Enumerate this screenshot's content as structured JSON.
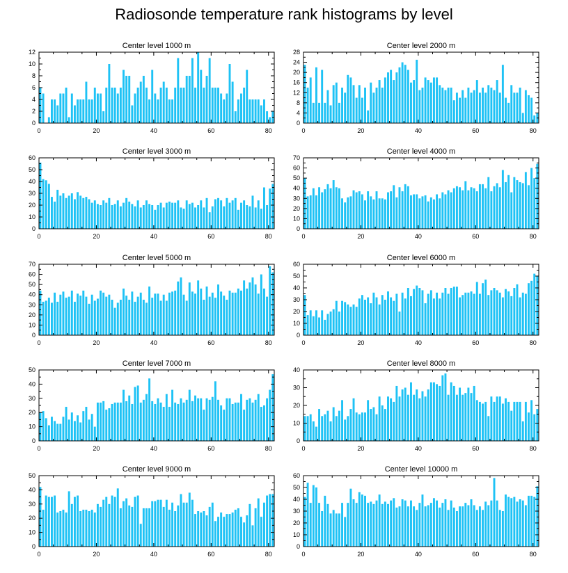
{
  "figure_title": "Radiosonde temperature rank histograms by level",
  "chart_data": [
    {
      "type": "bar",
      "title": "Center level 1000 m",
      "xlabel": "",
      "ylabel": "",
      "xlim": [
        0,
        82
      ],
      "ylim": [
        0,
        12
      ],
      "xticks": [
        0,
        20,
        40,
        60,
        80
      ],
      "yticks": [
        0,
        2,
        4,
        6,
        8,
        10,
        12
      ],
      "values": [
        6,
        5,
        0,
        1,
        4,
        4,
        3,
        5,
        5,
        6,
        1,
        5,
        3,
        4,
        4,
        4,
        7,
        4,
        4,
        6,
        5,
        5,
        2,
        6,
        10,
        6,
        6,
        5,
        6,
        9,
        8,
        8,
        3,
        5,
        6,
        7,
        8,
        6,
        4,
        9,
        5,
        4,
        6,
        7,
        6,
        4,
        4,
        6,
        11,
        6,
        6,
        8,
        8,
        11,
        6,
        12,
        9,
        6,
        8,
        11,
        6,
        6,
        6,
        5,
        4,
        5,
        10,
        7,
        2,
        4,
        5,
        6,
        9,
        4,
        4,
        4,
        4,
        3,
        4,
        2,
        1,
        2
      ]
    },
    {
      "type": "bar",
      "title": "Center level 2000 m",
      "xlabel": "",
      "ylabel": "",
      "xlim": [
        0,
        82
      ],
      "ylim": [
        0,
        28
      ],
      "xticks": [
        0,
        20,
        40,
        60,
        80
      ],
      "yticks": [
        0,
        4,
        8,
        12,
        16,
        20,
        24,
        28
      ],
      "values": [
        23,
        14,
        18,
        8,
        22,
        8,
        21,
        8,
        13,
        7,
        15,
        16,
        8,
        14,
        12,
        19,
        18,
        15,
        10,
        15,
        10,
        14,
        5,
        16,
        12,
        14,
        17,
        14,
        18,
        20,
        21,
        17,
        20,
        22,
        24,
        23,
        21,
        16,
        17,
        25,
        13,
        14,
        18,
        17,
        16,
        18,
        18,
        15,
        14,
        13,
        14,
        14,
        9,
        12,
        10,
        13,
        10,
        14,
        12,
        13,
        17,
        12,
        14,
        12,
        15,
        14,
        13,
        17,
        12,
        23,
        10,
        8,
        15,
        12,
        12,
        14,
        4,
        13,
        11,
        10,
        3,
        4
      ]
    },
    {
      "type": "bar",
      "title": "Center level 3000 m",
      "xlabel": "",
      "ylabel": "",
      "xlim": [
        0,
        82
      ],
      "ylim": [
        0,
        60
      ],
      "xticks": [
        0,
        20,
        40,
        60,
        80
      ],
      "yticks": [
        0,
        10,
        20,
        30,
        40,
        50,
        60
      ],
      "values": [
        56,
        42,
        41,
        38,
        27,
        23,
        33,
        28,
        30,
        26,
        28,
        30,
        25,
        31,
        28,
        26,
        27,
        25,
        22,
        24,
        21,
        20,
        24,
        22,
        26,
        20,
        21,
        24,
        19,
        22,
        26,
        23,
        21,
        19,
        24,
        18,
        20,
        24,
        21,
        20,
        16,
        20,
        22,
        18,
        22,
        23,
        22,
        22,
        24,
        18,
        17,
        24,
        21,
        22,
        18,
        20,
        24,
        18,
        26,
        14,
        19,
        25,
        26,
        24,
        19,
        26,
        22,
        24,
        26,
        16,
        22,
        24,
        20,
        19,
        28,
        18,
        24,
        17,
        35,
        20,
        34,
        38
      ]
    },
    {
      "type": "bar",
      "title": "Center level 4000 m",
      "xlabel": "",
      "ylabel": "",
      "xlim": [
        0,
        82
      ],
      "ylim": [
        0,
        70
      ],
      "xticks": [
        0,
        20,
        40,
        60,
        80
      ],
      "yticks": [
        0,
        10,
        20,
        30,
        40,
        50,
        60,
        70
      ],
      "values": [
        50,
        32,
        33,
        40,
        33,
        41,
        36,
        39,
        44,
        40,
        48,
        41,
        40,
        30,
        26,
        31,
        32,
        38,
        36,
        37,
        34,
        28,
        37,
        32,
        29,
        37,
        30,
        30,
        29,
        36,
        37,
        43,
        31,
        41,
        37,
        44,
        42,
        33,
        34,
        34,
        30,
        32,
        33,
        27,
        31,
        29,
        34,
        30,
        36,
        34,
        38,
        36,
        40,
        42,
        41,
        38,
        47,
        38,
        41,
        40,
        37,
        44,
        44,
        40,
        51,
        37,
        42,
        45,
        41,
        58,
        46,
        53,
        36,
        51,
        48,
        46,
        45,
        56,
        43,
        60,
        50,
        64
      ]
    },
    {
      "type": "bar",
      "title": "Center level 5000 m",
      "xlabel": "",
      "ylabel": "",
      "xlim": [
        0,
        82
      ],
      "ylim": [
        0,
        70
      ],
      "xticks": [
        0,
        20,
        40,
        60,
        80
      ],
      "yticks": [
        0,
        10,
        20,
        30,
        40,
        50,
        60,
        70
      ],
      "values": [
        44,
        33,
        34,
        37,
        32,
        42,
        33,
        40,
        43,
        37,
        38,
        44,
        33,
        41,
        39,
        44,
        38,
        31,
        40,
        34,
        36,
        44,
        42,
        38,
        40,
        35,
        27,
        32,
        35,
        46,
        39,
        35,
        43,
        33,
        38,
        42,
        35,
        32,
        48,
        37,
        41,
        41,
        34,
        40,
        34,
        42,
        43,
        44,
        53,
        57,
        40,
        34,
        52,
        43,
        41,
        54,
        46,
        35,
        48,
        38,
        42,
        37,
        50,
        43,
        39,
        35,
        44,
        42,
        42,
        46,
        44,
        54,
        46,
        52,
        57,
        50,
        41,
        60,
        46,
        38,
        68,
        62
      ]
    },
    {
      "type": "bar",
      "title": "Center level 6000 m",
      "xlabel": "",
      "ylabel": "",
      "xlim": [
        0,
        82
      ],
      "ylim": [
        0,
        60
      ],
      "xticks": [
        0,
        20,
        40,
        60,
        80
      ],
      "yticks": [
        0,
        10,
        20,
        30,
        40,
        50,
        60
      ],
      "values": [
        34,
        17,
        21,
        16,
        21,
        15,
        21,
        13,
        18,
        20,
        22,
        29,
        20,
        29,
        28,
        26,
        24,
        26,
        24,
        31,
        34,
        30,
        32,
        27,
        36,
        32,
        26,
        34,
        30,
        37,
        32,
        29,
        35,
        20,
        36,
        31,
        40,
        33,
        39,
        42,
        40,
        38,
        27,
        35,
        38,
        31,
        36,
        31,
        36,
        40,
        35,
        40,
        41,
        41,
        32,
        34,
        36,
        36,
        37,
        35,
        45,
        35,
        44,
        47,
        34,
        38,
        40,
        38,
        36,
        32,
        39,
        37,
        33,
        40,
        43,
        32,
        36,
        35,
        44,
        46,
        52,
        50
      ]
    },
    {
      "type": "bar",
      "title": "Center level 7000 m",
      "xlabel": "",
      "ylabel": "",
      "xlim": [
        0,
        82
      ],
      "ylim": [
        0,
        50
      ],
      "xticks": [
        0,
        20,
        40,
        60,
        80
      ],
      "yticks": [
        0,
        10,
        20,
        30,
        40,
        50
      ],
      "values": [
        20,
        21,
        16,
        11,
        17,
        14,
        12,
        12,
        17,
        24,
        15,
        20,
        14,
        18,
        13,
        21,
        24,
        15,
        19,
        10,
        27,
        27,
        28,
        22,
        23,
        26,
        27,
        27,
        27,
        36,
        28,
        32,
        26,
        38,
        39,
        27,
        29,
        33,
        44,
        28,
        26,
        30,
        27,
        24,
        33,
        24,
        36,
        27,
        26,
        30,
        27,
        29,
        36,
        28,
        32,
        30,
        30,
        22,
        30,
        29,
        31,
        42,
        29,
        25,
        22,
        30,
        30,
        26,
        27,
        27,
        33,
        22,
        29,
        30,
        27,
        29,
        33,
        24,
        25,
        30,
        36,
        47
      ]
    },
    {
      "type": "bar",
      "title": "Center level 8000 m",
      "xlabel": "",
      "ylabel": "",
      "xlim": [
        0,
        82
      ],
      "ylim": [
        0,
        40
      ],
      "xticks": [
        0,
        20,
        40,
        60,
        80
      ],
      "yticks": [
        0,
        10,
        20,
        30,
        40
      ],
      "values": [
        14,
        14,
        15,
        11,
        8,
        18,
        14,
        15,
        17,
        11,
        19,
        14,
        17,
        23,
        12,
        14,
        18,
        24,
        16,
        15,
        16,
        16,
        23,
        18,
        19,
        15,
        25,
        20,
        18,
        25,
        24,
        22,
        31,
        25,
        29,
        30,
        26,
        33,
        26,
        29,
        24,
        28,
        25,
        29,
        33,
        33,
        32,
        31,
        37,
        38,
        26,
        33,
        31,
        26,
        30,
        26,
        27,
        30,
        27,
        31,
        23,
        22,
        21,
        22,
        14,
        25,
        22,
        25,
        25,
        21,
        24,
        22,
        17,
        22,
        22,
        22,
        11,
        22,
        16,
        23,
        15,
        18
      ]
    },
    {
      "type": "bar",
      "title": "Center level 9000 m",
      "xlabel": "",
      "ylabel": "",
      "xlim": [
        0,
        82
      ],
      "ylim": [
        0,
        50
      ],
      "xticks": [
        0,
        20,
        40,
        60,
        80
      ],
      "yticks": [
        0,
        10,
        20,
        30,
        40,
        50
      ],
      "values": [
        42,
        26,
        36,
        35,
        35,
        36,
        24,
        25,
        26,
        24,
        39,
        30,
        35,
        36,
        25,
        26,
        26,
        25,
        26,
        24,
        30,
        28,
        33,
        35,
        30,
        36,
        35,
        41,
        27,
        32,
        34,
        29,
        28,
        35,
        36,
        16,
        27,
        27,
        27,
        32,
        32,
        33,
        33,
        28,
        33,
        26,
        31,
        25,
        29,
        37,
        31,
        31,
        38,
        33,
        23,
        25,
        24,
        25,
        22,
        28,
        31,
        18,
        21,
        24,
        21,
        23,
        23,
        24,
        26,
        27,
        21,
        17,
        22,
        30,
        15,
        27,
        34,
        21,
        31,
        36,
        37,
        37
      ]
    },
    {
      "type": "bar",
      "title": "Center level 10000 m",
      "xlabel": "",
      "ylabel": "",
      "xlim": [
        0,
        82
      ],
      "ylim": [
        0,
        60
      ],
      "xticks": [
        0,
        20,
        40,
        60,
        80
      ],
      "yticks": [
        0,
        10,
        20,
        30,
        40,
        50,
        60
      ],
      "values": [
        42,
        54,
        37,
        52,
        50,
        37,
        30,
        43,
        36,
        28,
        31,
        28,
        28,
        37,
        25,
        37,
        49,
        40,
        37,
        46,
        44,
        43,
        37,
        38,
        36,
        39,
        44,
        36,
        38,
        36,
        39,
        41,
        33,
        34,
        40,
        39,
        34,
        39,
        34,
        31,
        37,
        44,
        34,
        35,
        37,
        41,
        39,
        33,
        37,
        40,
        31,
        39,
        33,
        30,
        34,
        34,
        37,
        35,
        40,
        35,
        31,
        34,
        31,
        38,
        35,
        39,
        58,
        39,
        31,
        30,
        44,
        42,
        41,
        42,
        38,
        40,
        39,
        35,
        43,
        43,
        42,
        51
      ]
    }
  ]
}
